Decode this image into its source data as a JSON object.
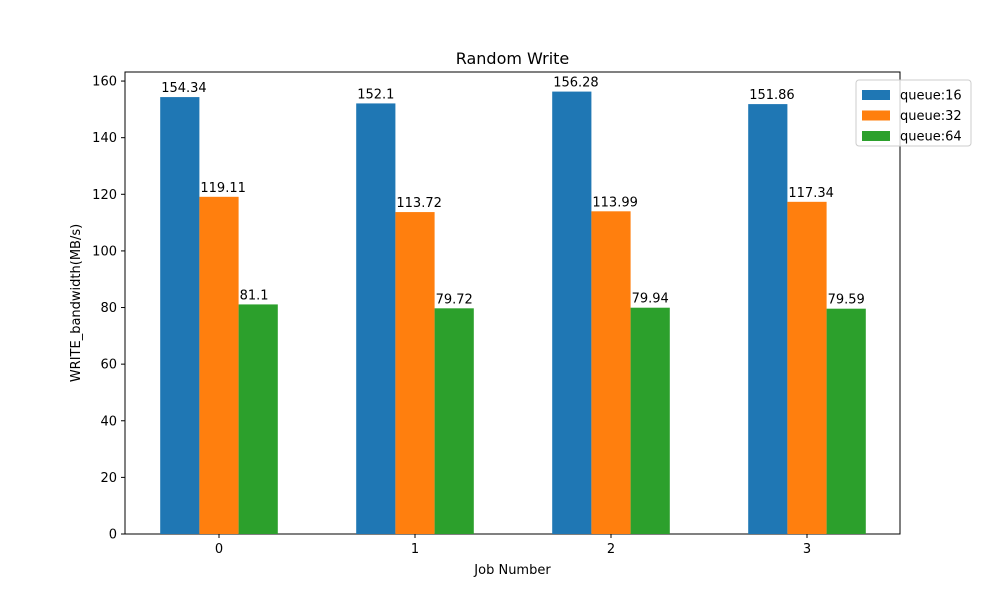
{
  "chart_data": {
    "type": "bar",
    "title": "Random Write",
    "xlabel": "Job Number",
    "ylabel": "WRITE_bandwidth(MB/s)",
    "categories": [
      "0",
      "1",
      "2",
      "3"
    ],
    "series": [
      {
        "name": "queue:16",
        "color": "#1f77b4",
        "values": [
          154.34,
          152.1,
          156.28,
          151.86
        ],
        "labels": [
          "154.34",
          "152.1",
          "156.28",
          "151.86"
        ]
      },
      {
        "name": "queue:32",
        "color": "#ff7f0e",
        "values": [
          119.11,
          113.72,
          113.99,
          117.34
        ],
        "labels": [
          "119.11",
          "113.72",
          "113.99",
          "117.34"
        ]
      },
      {
        "name": "queue:64",
        "color": "#2ca02c",
        "values": [
          81.1,
          79.72,
          79.94,
          79.59
        ],
        "labels": [
          "81.1",
          "79.72",
          "79.94",
          "79.59"
        ]
      }
    ],
    "ylim": [
      0,
      163.2
    ],
    "yticks": [
      "0",
      "20",
      "40",
      "60",
      "80",
      "100",
      "120",
      "140",
      "160"
    ],
    "grid": false,
    "legend_position": "upper right, outside"
  }
}
